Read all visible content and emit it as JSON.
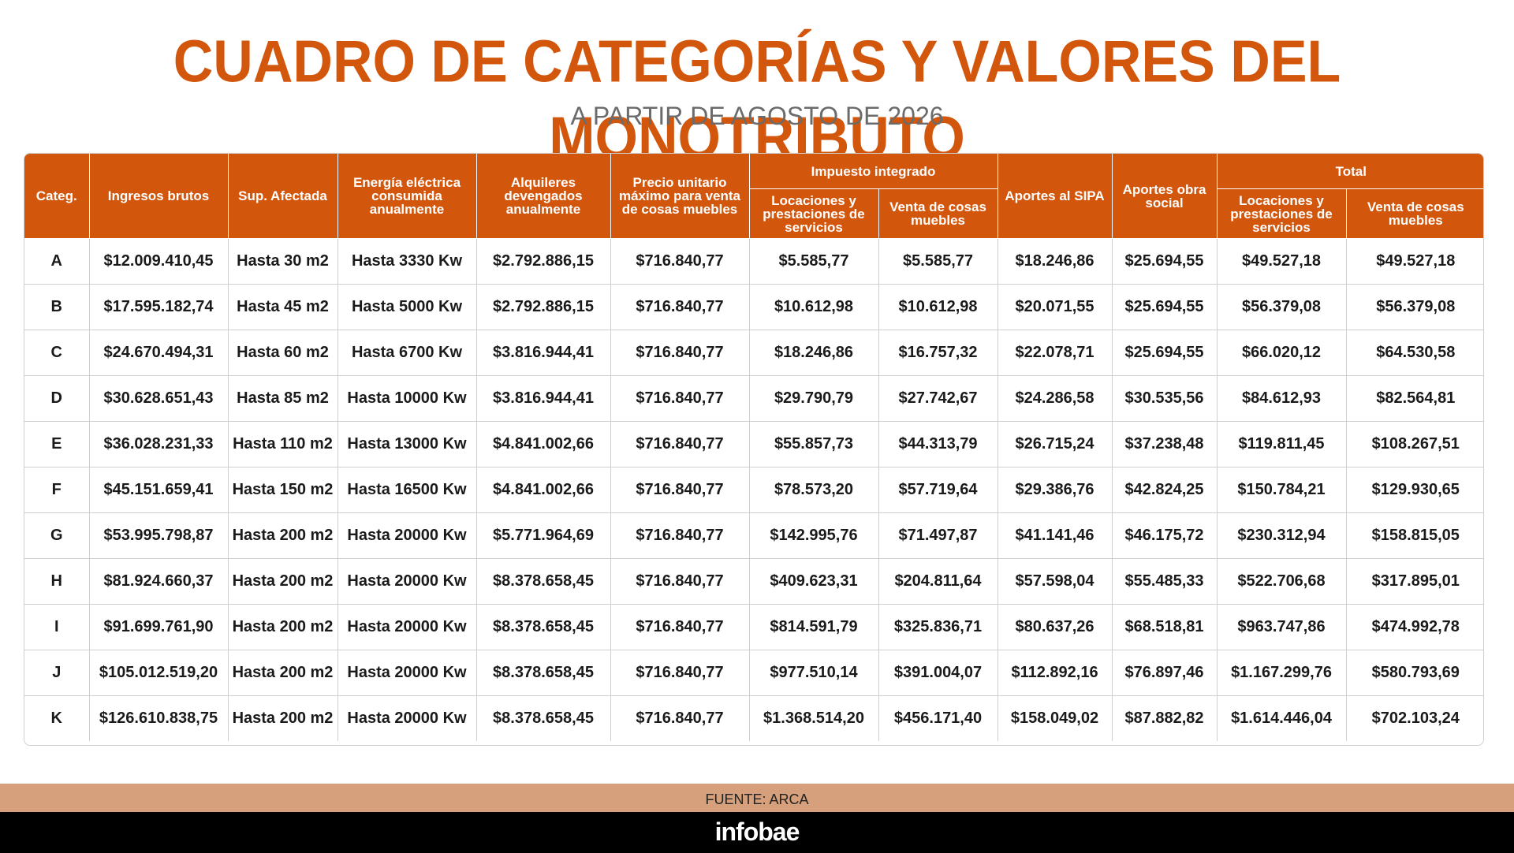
{
  "title": "CUADRO DE CATEGORÍAS Y VALORES DEL MONOTRIBUTO",
  "subtitle": "A PARTIR DE AGOSTO DE 2026",
  "headers": {
    "categ": "Categ.",
    "ingresos": "Ingresos brutos",
    "sup": "Sup. Afectada",
    "energia": "Energía eléctrica consumida anualmente",
    "alquileres": "Alquileres devengados anualmente",
    "precio": "Precio unitario máximo para venta de cosas muebles",
    "impuesto_group": "Impuesto integrado",
    "imp_locaciones": "Locaciones y prestaciones de servicios",
    "imp_venta": "Venta de cosas muebles",
    "sipa": "Aportes al SIPA",
    "obra_social": "Aportes obra social",
    "total_group": "Total",
    "tot_locaciones": "Locaciones y prestaciones de servicios",
    "tot_venta": "Venta de cosas muebles"
  },
  "rows": [
    [
      "A",
      "$12.009.410,45",
      "Hasta 30 m2",
      "Hasta 3330 Kw",
      "$2.792.886,15",
      "$716.840,77",
      "$5.585,77",
      "$5.585,77",
      "$18.246,86",
      "$25.694,55",
      "$49.527,18",
      "$49.527,18"
    ],
    [
      "B",
      "$17.595.182,74",
      "Hasta 45 m2",
      "Hasta 5000 Kw",
      "$2.792.886,15",
      "$716.840,77",
      "$10.612,98",
      "$10.612,98",
      "$20.071,55",
      "$25.694,55",
      "$56.379,08",
      "$56.379,08"
    ],
    [
      "C",
      "$24.670.494,31",
      "Hasta 60 m2",
      "Hasta 6700 Kw",
      "$3.816.944,41",
      "$716.840,77",
      "$18.246,86",
      "$16.757,32",
      "$22.078,71",
      "$25.694,55",
      "$66.020,12",
      "$64.530,58"
    ],
    [
      "D",
      "$30.628.651,43",
      "Hasta 85 m2",
      "Hasta 10000 Kw",
      "$3.816.944,41",
      "$716.840,77",
      "$29.790,79",
      "$27.742,67",
      "$24.286,58",
      "$30.535,56",
      "$84.612,93",
      "$82.564,81"
    ],
    [
      "E",
      "$36.028.231,33",
      "Hasta 110 m2",
      "Hasta 13000 Kw",
      "$4.841.002,66",
      "$716.840,77",
      "$55.857,73",
      "$44.313,79",
      "$26.715,24",
      "$37.238,48",
      "$119.811,45",
      "$108.267,51"
    ],
    [
      "F",
      "$45.151.659,41",
      "Hasta 150 m2",
      "Hasta 16500 Kw",
      "$4.841.002,66",
      "$716.840,77",
      "$78.573,20",
      "$57.719,64",
      "$29.386,76",
      "$42.824,25",
      "$150.784,21",
      "$129.930,65"
    ],
    [
      "G",
      "$53.995.798,87",
      "Hasta 200 m2",
      "Hasta 20000 Kw",
      "$5.771.964,69",
      "$716.840,77",
      "$142.995,76",
      "$71.497,87",
      "$41.141,46",
      "$46.175,72",
      "$230.312,94",
      "$158.815,05"
    ],
    [
      "H",
      "$81.924.660,37",
      "Hasta 200 m2",
      "Hasta 20000 Kw",
      "$8.378.658,45",
      "$716.840,77",
      "$409.623,31",
      "$204.811,64",
      "$57.598,04",
      "$55.485,33",
      "$522.706,68",
      "$317.895,01"
    ],
    [
      "I",
      "$91.699.761,90",
      "Hasta 200 m2",
      "Hasta 20000 Kw",
      "$8.378.658,45",
      "$716.840,77",
      "$814.591,79",
      "$325.836,71",
      "$80.637,26",
      "$68.518,81",
      "$963.747,86",
      "$474.992,78"
    ],
    [
      "J",
      "$105.012.519,20",
      "Hasta 200 m2",
      "Hasta 20000 Kw",
      "$8.378.658,45",
      "$716.840,77",
      "$977.510,14",
      "$391.004,07",
      "$112.892,16",
      "$76.897,46",
      "$1.167.299,76",
      "$580.793,69"
    ],
    [
      "K",
      "$126.610.838,75",
      "Hasta 200 m2",
      "Hasta 20000 Kw",
      "$8.378.658,45",
      "$716.840,77",
      "$1.368.514,20",
      "$456.171,40",
      "$158.049,02",
      "$87.882,82",
      "$1.614.446,04",
      "$702.103,24"
    ]
  ],
  "source": "FUENTE: ARCA",
  "brand": "infobae",
  "colors": {
    "accent": "#d2560b",
    "source_bar": "#d5a07b",
    "footer": "#000000"
  }
}
